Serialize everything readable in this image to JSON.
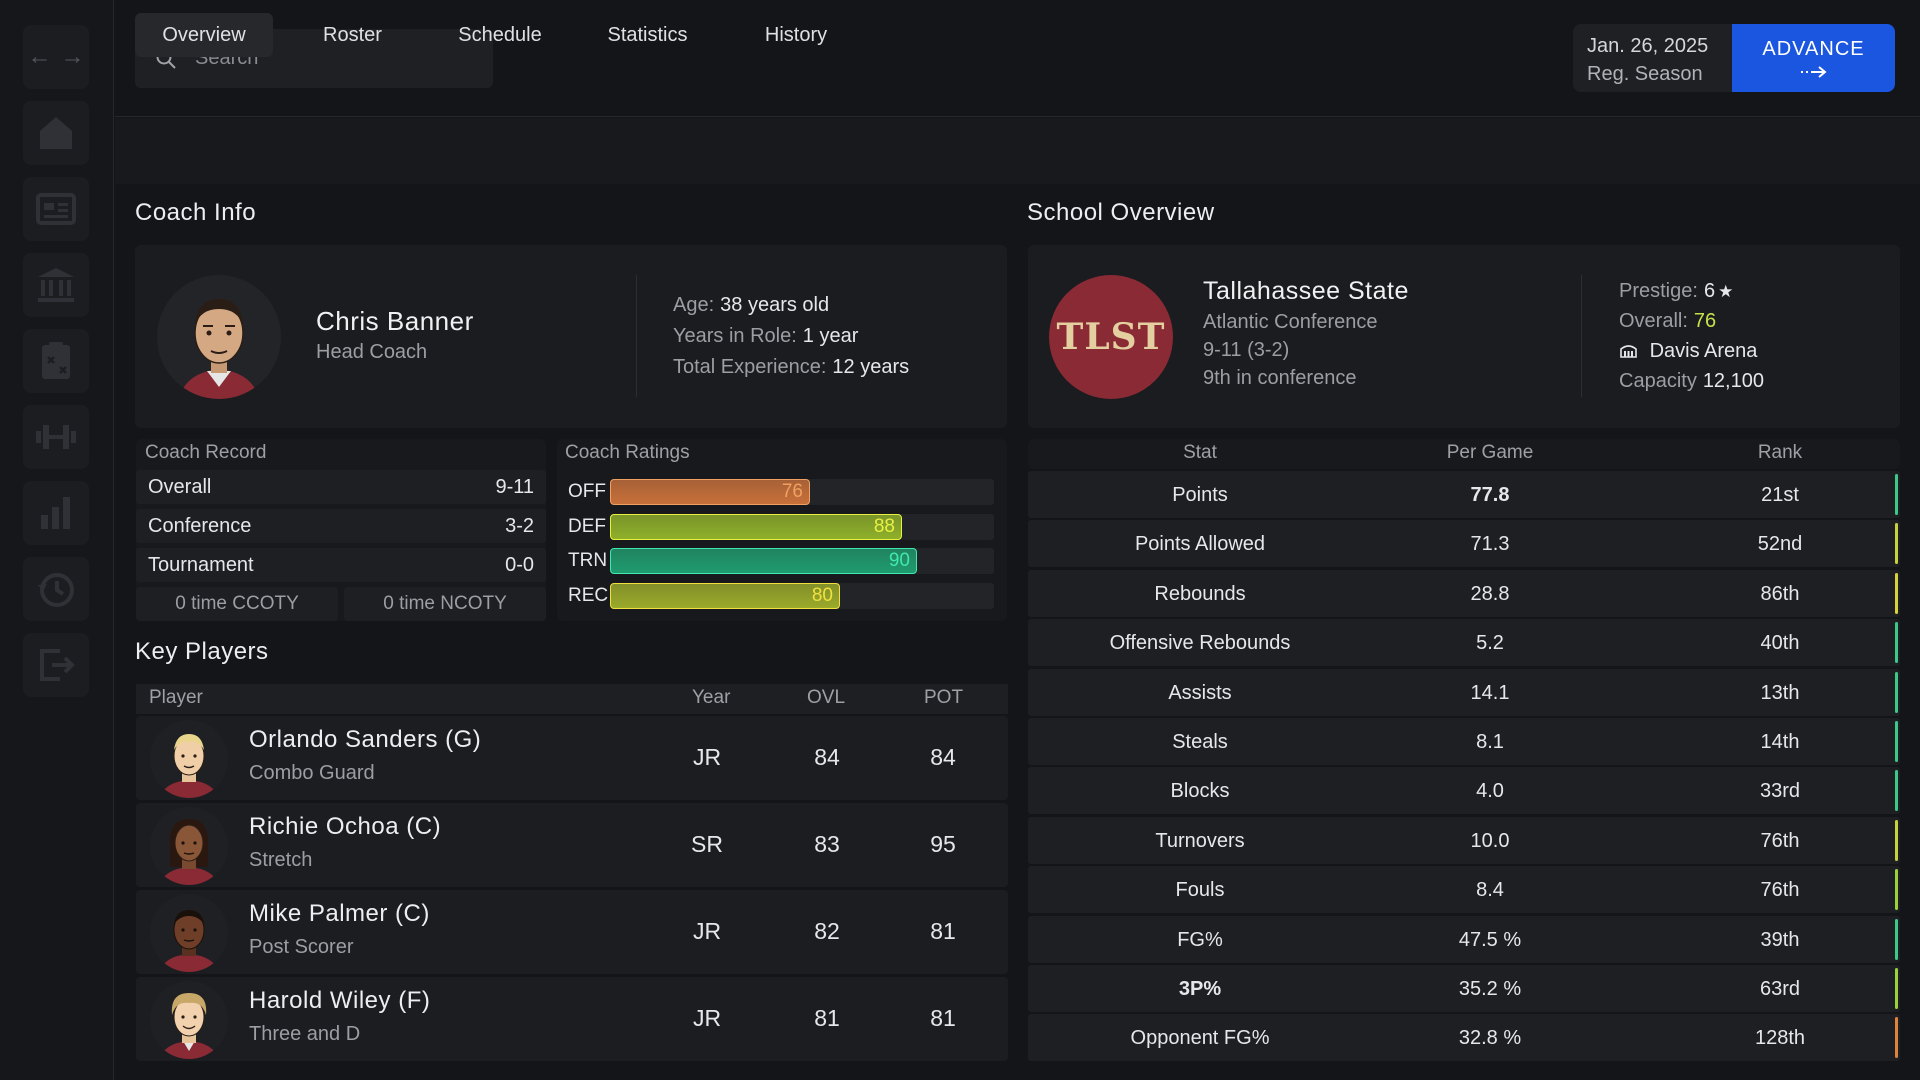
{
  "header": {
    "search_placeholder": "Search",
    "date": "Jan. 26, 2025",
    "phase": "Reg. Season",
    "advance_label": "ADVANCE"
  },
  "tabs": [
    {
      "label": "Overview",
      "active": true
    },
    {
      "label": "Roster"
    },
    {
      "label": "Schedule"
    },
    {
      "label": "Statistics"
    },
    {
      "label": "History"
    }
  ],
  "sidebar": {
    "icons": [
      "back-arrow-icon",
      "forward-arrow-icon",
      "home-icon",
      "news-icon",
      "institution-icon",
      "playbook-icon",
      "training-icon",
      "stats-icon",
      "history-icon",
      "exit-icon"
    ]
  },
  "coach": {
    "section_title": "Coach Info",
    "name": "Chris Banner",
    "role": "Head Coach",
    "age_label": "Age:",
    "age_value": "38 years old",
    "years_label": "Years in Role:",
    "years_value": "1 year",
    "exp_label": "Total Experience:",
    "exp_value": "12 years"
  },
  "record": {
    "title": "Coach Record",
    "rows": [
      {
        "label": "Overall",
        "value": "9-11"
      },
      {
        "label": "Conference",
        "value": "3-2"
      },
      {
        "label": "Tournament",
        "value": "0-0"
      }
    ],
    "ccoty": "0 time CCOTY",
    "ncoty": "0 time NCOTY"
  },
  "ratings": {
    "title": "Coach Ratings",
    "items": [
      {
        "label": "OFF",
        "value": "76",
        "color": "#c8703a",
        "text_color": "#f0a060"
      },
      {
        "label": "DEF",
        "value": "88",
        "color": "#8fb02a",
        "text_color": "#e8f040"
      },
      {
        "label": "TRN",
        "value": "90",
        "color": "#1f9b6f",
        "text_color": "#40e8b0"
      },
      {
        "label": "REC",
        "value": "80",
        "color": "#9aaa2a",
        "text_color": "#f0e040"
      }
    ]
  },
  "players": {
    "title": "Key Players",
    "columns": {
      "player": "Player",
      "year": "Year",
      "ovl": "OVL",
      "pot": "POT"
    },
    "rows": [
      {
        "name": "Orlando Sanders (G)",
        "archetype": "Combo Guard",
        "year": "JR",
        "ovl": "84",
        "pot": "84"
      },
      {
        "name": "Richie Ochoa (C)",
        "archetype": "Stretch",
        "year": "SR",
        "ovl": "83",
        "pot": "95"
      },
      {
        "name": "Mike Palmer (C)",
        "archetype": "Post Scorer",
        "year": "JR",
        "ovl": "82",
        "pot": "81"
      },
      {
        "name": "Harold Wiley (F)",
        "archetype": "Three and D",
        "year": "JR",
        "ovl": "81",
        "pot": "81"
      }
    ]
  },
  "school": {
    "section_title": "School Overview",
    "logo_text": "TLST",
    "name": "Tallahassee State",
    "conference": "Atlantic Conference",
    "record": "9-11 (3-2)",
    "standing": "9th in conference",
    "prestige_label": "Prestige:",
    "prestige_value": "6",
    "overall_label": "Overall:",
    "overall_value": "76",
    "arena": "Davis Arena",
    "capacity_label": "Capacity",
    "capacity_value": "12,100"
  },
  "stats": {
    "columns": {
      "stat": "Stat",
      "per_game": "Per Game",
      "rank": "Rank"
    },
    "rows": [
      {
        "stat": "Points",
        "value": "77.8",
        "rank": "21st",
        "color": "#3cc98a"
      },
      {
        "stat": "Points Allowed",
        "value": "71.3",
        "rank": "52nd",
        "color": "#c8d23c"
      },
      {
        "stat": "Rebounds",
        "value": "28.8",
        "rank": "86th",
        "color": "#d8d23c"
      },
      {
        "stat": "Offensive Rebounds",
        "value": "5.2",
        "rank": "40th",
        "color": "#3cc98a"
      },
      {
        "stat": "Assists",
        "value": "14.1",
        "rank": "13th",
        "color": "#3cc98a"
      },
      {
        "stat": "Steals",
        "value": "8.1",
        "rank": "14th",
        "color": "#3cc98a"
      },
      {
        "stat": "Blocks",
        "value": "4.0",
        "rank": "33rd",
        "color": "#3cc98a"
      },
      {
        "stat": "Turnovers",
        "value": "10.0",
        "rank": "76th",
        "color": "#c8d23c"
      },
      {
        "stat": "Fouls",
        "value": "8.4",
        "rank": "76th",
        "color": "#9bd23c"
      },
      {
        "stat": "FG%",
        "value": "47.5 %",
        "rank": "39th",
        "color": "#3cc98a"
      },
      {
        "stat": "3P%",
        "value": "35.2 %",
        "rank": "63rd",
        "color": "#9bd23c"
      },
      {
        "stat": "Opponent FG%",
        "value": "32.8 %",
        "rank": "128th",
        "color": "#e0833a"
      }
    ]
  }
}
